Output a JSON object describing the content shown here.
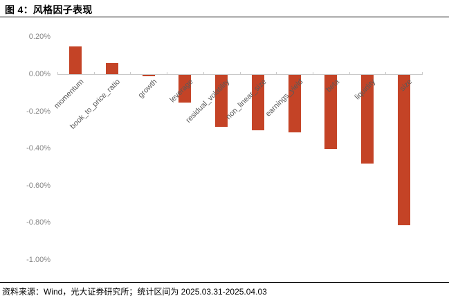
{
  "header": {
    "title": "图 4：风格因子表现"
  },
  "footer": {
    "source": "资料来源：Wind，光大证券研究所；统计区间为 2025.03.31-2025.04.03"
  },
  "chart_data": {
    "type": "bar",
    "title": "图 4：风格因子表现",
    "categories": [
      "momentum",
      "book_to_price_ratio",
      "growth",
      "leverage",
      "residual_volatility",
      "non_linear_size",
      "earnings_yield",
      "beta",
      "liquidity",
      "size"
    ],
    "values": [
      0.15,
      0.06,
      -0.01,
      -0.15,
      -0.28,
      -0.3,
      -0.31,
      -0.4,
      -0.48,
      -0.81
    ],
    "unit": "%",
    "xlabel": "",
    "ylabel": "",
    "ylim": [
      -1.0,
      0.2
    ],
    "grid": false,
    "legend": "none",
    "y_ticks": [
      {
        "label": "0.20%",
        "value": 0.2
      },
      {
        "label": "0.00%",
        "value": 0.0
      },
      {
        "label": "-0.20%",
        "value": -0.2
      },
      {
        "label": "-0.40%",
        "value": -0.4
      },
      {
        "label": "-0.60%",
        "value": -0.6
      },
      {
        "label": "-0.80%",
        "value": -0.8
      },
      {
        "label": "-1.00%",
        "value": -1.0
      }
    ],
    "colors": {
      "bar": "#C44326",
      "axis_line": "#C9C9C9",
      "y_tick_text": "#848484",
      "x_tick_text": "#595959"
    }
  }
}
